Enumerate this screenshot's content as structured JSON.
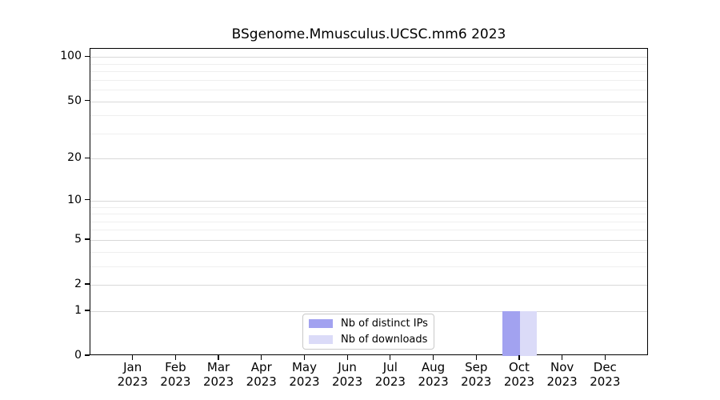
{
  "title": "BSgenome.Mmusculus.UCSC.mm6 2023",
  "colors": {
    "background": "#ffffff",
    "axis": "#000000",
    "grid_major": "#d8d8d8",
    "grid_minor": "#efefef",
    "legend_border": "#c9c9c9",
    "distinct_ips_bar": "#a2a2f0",
    "downloads_bar": "#dbdbf8"
  },
  "legend": {
    "items": [
      {
        "label": "Nb of distinct IPs"
      },
      {
        "label": "Nb of downloads"
      }
    ]
  },
  "chart_data": {
    "type": "bar",
    "title": "BSgenome.Mmusculus.UCSC.mm6 2023",
    "categories": [
      "Jan 2023",
      "Feb 2023",
      "Mar 2023",
      "Apr 2023",
      "May 2023",
      "Jun 2023",
      "Jul 2023",
      "Aug 2023",
      "Sep 2023",
      "Oct 2023",
      "Nov 2023",
      "Dec 2023"
    ],
    "series": [
      {
        "name": "Nb of distinct IPs",
        "color": "#a2a2f0",
        "values": [
          0,
          0,
          0,
          0,
          0,
          0,
          0,
          0,
          0,
          1,
          0,
          0
        ]
      },
      {
        "name": "Nb of downloads",
        "color": "#dbdbf8",
        "values": [
          0,
          0,
          0,
          0,
          0,
          0,
          0,
          0,
          0,
          1,
          0,
          0
        ]
      }
    ],
    "xlabel": "",
    "ylabel": "",
    "y_scale": "log1p",
    "y_major_ticks": [
      0,
      1,
      2,
      5,
      10,
      20,
      50,
      100
    ],
    "y_minor_ticks": [
      3,
      4,
      6,
      7,
      8,
      9,
      30,
      40,
      60,
      70,
      80,
      90
    ],
    "ylim": [
      0,
      113.6
    ],
    "grid": "horizontal-only",
    "legend_position": "bottom-center-inside"
  }
}
